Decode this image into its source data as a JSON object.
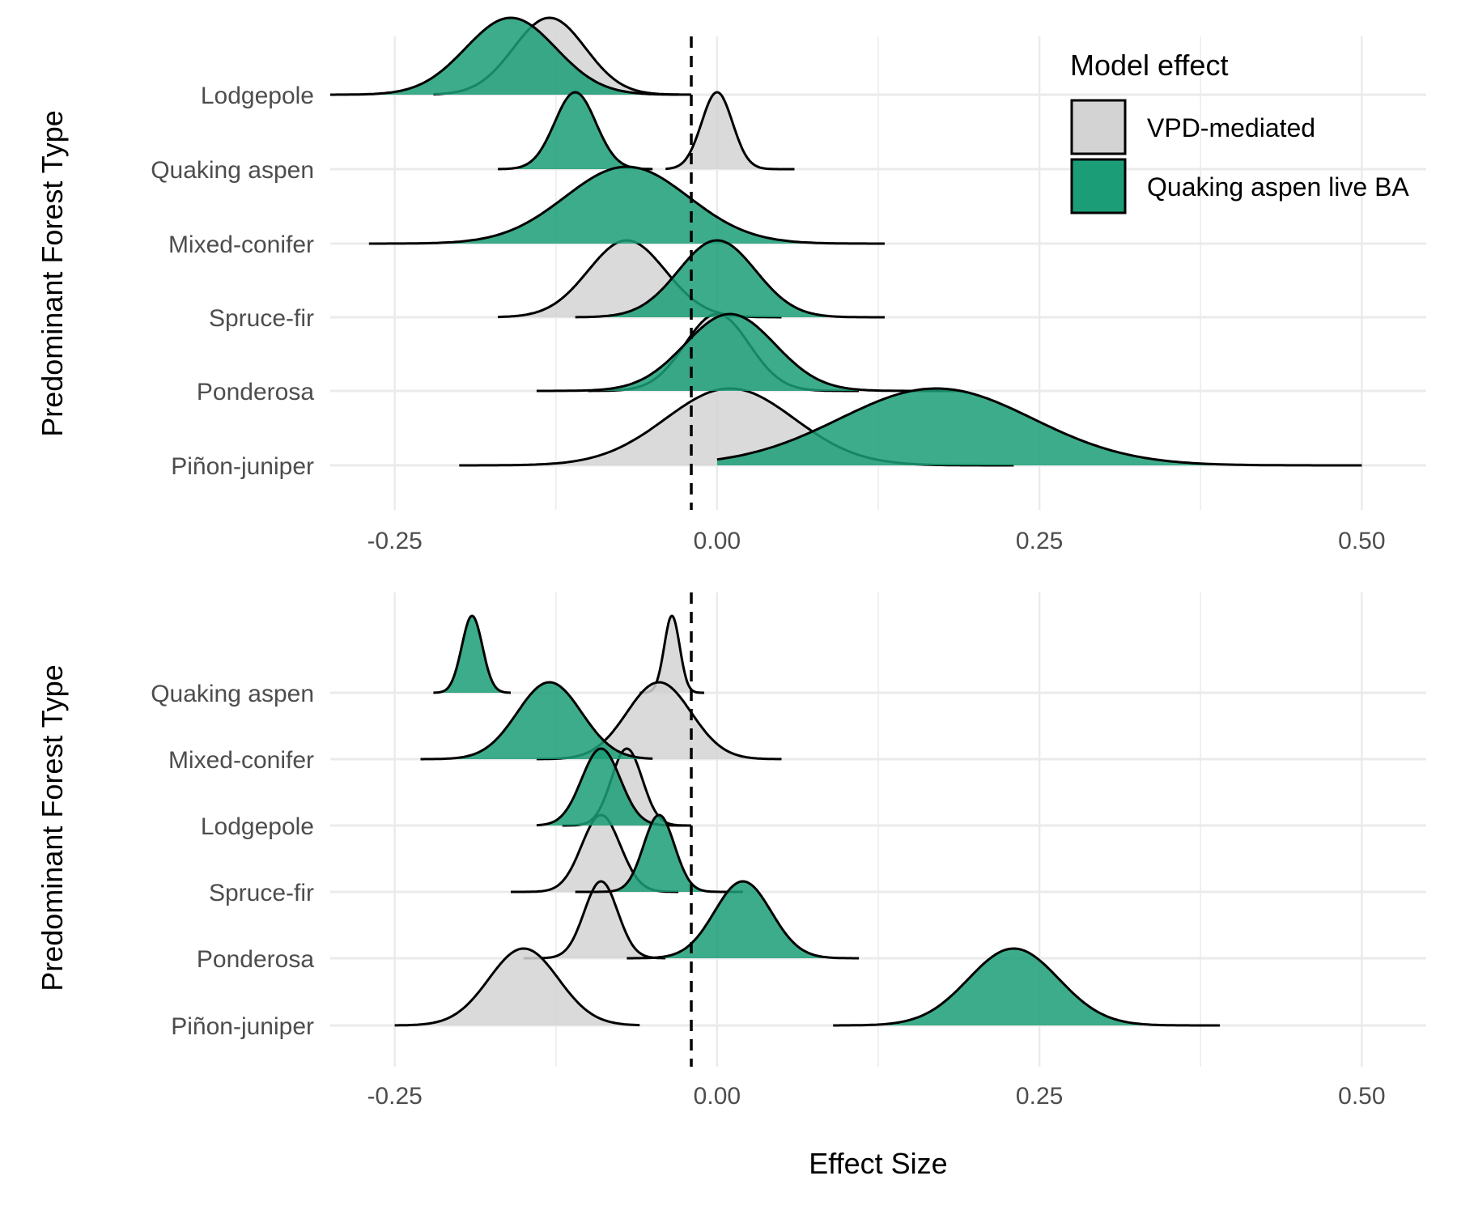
{
  "colors": {
    "vpd": "#d3d3d3",
    "aspen": "#1b9e77",
    "grid": "#ebebeb",
    "outline": "#000000"
  },
  "legend": {
    "title": "Model effect",
    "items": [
      {
        "label": "VPD-mediated",
        "color": "#d3d3d3"
      },
      {
        "label": "Quaking aspen live BA",
        "color": "#1b9e77"
      }
    ]
  },
  "xlabel": "Effect Size",
  "chart_data": [
    {
      "type": "area",
      "panel": "top",
      "xlabel": "",
      "ylabel": "Predominant Forest Type",
      "xlim": [
        -0.3,
        0.55
      ],
      "xticks": [
        -0.25,
        0.0,
        0.25,
        0.5
      ],
      "xtick_labels": [
        "-0.25",
        "0.00",
        "0.25",
        "0.50"
      ],
      "reference_line": -0.02,
      "categories": [
        "Lodgepole",
        "Quaking aspen",
        "Mixed-conifer",
        "Spruce-fir",
        "Ponderosa",
        "Piñon-juniper"
      ],
      "series": [
        {
          "name": "VPD-mediated",
          "color": "#d3d3d3",
          "densities": [
            {
              "category": "Lodgepole",
              "mean": -0.13,
              "sd": 0.028,
              "min": -0.22,
              "max": -0.02
            },
            {
              "category": "Quaking aspen",
              "mean": 0.0,
              "sd": 0.012,
              "min": -0.04,
              "max": 0.06
            },
            {
              "category": "Spruce-fir",
              "mean": -0.07,
              "sd": 0.03,
              "min": -0.17,
              "max": 0.05
            },
            {
              "category": "Ponderosa",
              "mean": 0.0,
              "sd": 0.025,
              "min": -0.1,
              "max": 0.11
            },
            {
              "category": "Piñon-juniper",
              "mean": 0.01,
              "sd": 0.05,
              "min": -0.2,
              "max": 0.23
            }
          ]
        },
        {
          "name": "Quaking aspen live BA",
          "color": "#1b9e77",
          "densities": [
            {
              "category": "Lodgepole",
              "mean": -0.16,
              "sd": 0.035,
              "min": -0.3,
              "max": -0.03
            },
            {
              "category": "Quaking aspen",
              "mean": -0.11,
              "sd": 0.016,
              "min": -0.17,
              "max": -0.05
            },
            {
              "category": "Mixed-conifer",
              "mean": -0.07,
              "sd": 0.048,
              "min": -0.27,
              "max": 0.13
            },
            {
              "category": "Spruce-fir",
              "mean": 0.0,
              "sd": 0.03,
              "min": -0.11,
              "max": 0.13
            },
            {
              "category": "Ponderosa",
              "mean": 0.01,
              "sd": 0.035,
              "min": -0.14,
              "max": 0.19
            },
            {
              "category": "Piñon-juniper",
              "mean": 0.17,
              "sd": 0.075,
              "min": 0.0,
              "max": 0.5
            }
          ]
        }
      ]
    },
    {
      "type": "area",
      "panel": "bottom",
      "xlabel": "Effect Size",
      "ylabel": "Predominant Forest Type",
      "xlim": [
        -0.3,
        0.55
      ],
      "xticks": [
        -0.25,
        0.0,
        0.25,
        0.5
      ],
      "xtick_labels": [
        "-0.25",
        "0.00",
        "0.25",
        "0.50"
      ],
      "reference_line": -0.02,
      "categories": [
        "Quaking aspen",
        "Mixed-conifer",
        "Lodgepole",
        "Spruce-fir",
        "Ponderosa",
        "Piñon-juniper"
      ],
      "series": [
        {
          "name": "VPD-mediated",
          "color": "#d3d3d3",
          "densities": [
            {
              "category": "Quaking aspen",
              "mean": -0.035,
              "sd": 0.006,
              "min": -0.06,
              "max": -0.01
            },
            {
              "category": "Mixed-conifer",
              "mean": -0.045,
              "sd": 0.025,
              "min": -0.14,
              "max": 0.05
            },
            {
              "category": "Lodgepole",
              "mean": -0.07,
              "sd": 0.012,
              "min": -0.12,
              "max": -0.02
            },
            {
              "category": "Spruce-fir",
              "mean": -0.09,
              "sd": 0.015,
              "min": -0.16,
              "max": -0.03
            },
            {
              "category": "Ponderosa",
              "mean": -0.09,
              "sd": 0.013,
              "min": -0.15,
              "max": -0.04
            },
            {
              "category": "Piñon-juniper",
              "mean": -0.15,
              "sd": 0.027,
              "min": -0.25,
              "max": -0.06
            }
          ]
        },
        {
          "name": "Quaking aspen live BA",
          "color": "#1b9e77",
          "densities": [
            {
              "category": "Quaking aspen",
              "mean": -0.19,
              "sd": 0.008,
              "min": -0.22,
              "max": -0.16
            },
            {
              "category": "Mixed-conifer",
              "mean": -0.13,
              "sd": 0.025,
              "min": -0.23,
              "max": -0.05
            },
            {
              "category": "Lodgepole",
              "mean": -0.09,
              "sd": 0.015,
              "min": -0.14,
              "max": -0.02
            },
            {
              "category": "Spruce-fir",
              "mean": -0.045,
              "sd": 0.012,
              "min": -0.11,
              "max": 0.02
            },
            {
              "category": "Ponderosa",
              "mean": 0.02,
              "sd": 0.022,
              "min": -0.07,
              "max": 0.11
            },
            {
              "category": "Piñon-juniper",
              "mean": 0.23,
              "sd": 0.035,
              "min": 0.09,
              "max": 0.39
            }
          ]
        }
      ]
    }
  ]
}
